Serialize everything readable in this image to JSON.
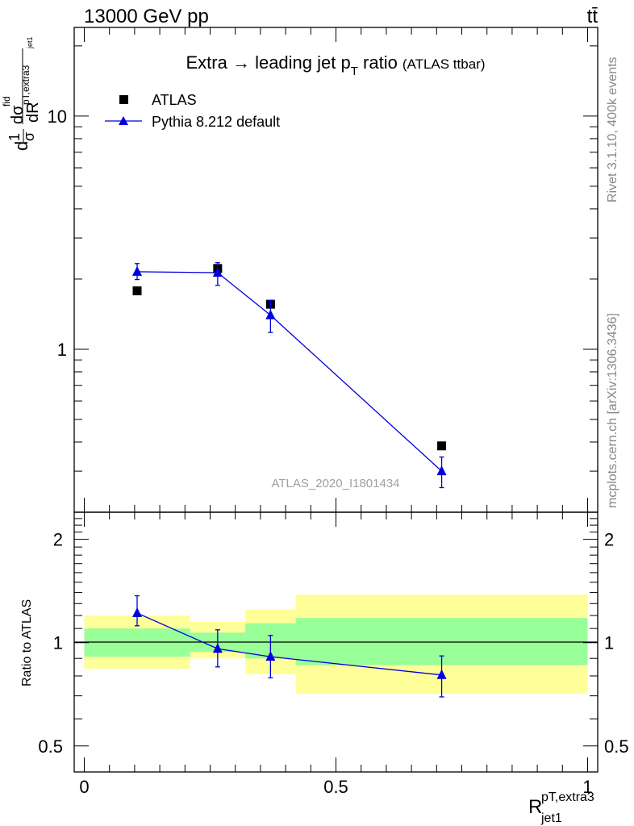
{
  "header": {
    "left": "13000 GeV pp",
    "right": "tt̄"
  },
  "side_notes": {
    "rivet": "Rivet 3.1.10,  400k events",
    "mcplots": "mcplots.cern.ch [arXiv:1306.3436]"
  },
  "colors": {
    "mc": "#0000dd",
    "band_inner": "#99ff99",
    "band_outer": "#ffff99",
    "data": "#000000",
    "watermark": "#a0a0a0"
  },
  "chart_data": [
    {
      "type": "scatter",
      "title": "Extra → leading jet p_T ratio",
      "title_main": "Extra → leading jet p",
      "title_sub": "T",
      "title_after": " ratio",
      "title_note": "(ATLAS ttbar)",
      "ylabel": "dσ/dR (normalized)",
      "ylabel_parts": {
        "frac_num": "1",
        "frac_den": "σ",
        "d": "d",
        "sigma": "dσ",
        "sup": "fid",
        "sub": "pT,extra3",
        "subsub": "jet1",
        "dR": "dR"
      },
      "yscale": "log",
      "xlim": [
        -0.02,
        1.02
      ],
      "ylim": [
        0.2,
        24
      ],
      "y_tick_labels": [
        "1",
        "10"
      ],
      "watermark": "ATLAS_2020_I1801434",
      "legend_position": "top-left",
      "series": [
        {
          "name": "ATLAS",
          "marker": "square",
          "x": [
            0.105,
            0.265,
            0.37,
            0.71
          ],
          "y": [
            1.78,
            2.22,
            1.56,
            0.385
          ],
          "yerr_lo": [
            0.03,
            0.05,
            0.05,
            0.01
          ],
          "yerr_hi": [
            0.03,
            0.05,
            0.05,
            0.01
          ]
        },
        {
          "name": "Pythia 8.212 default",
          "marker": "triangle",
          "x": [
            0.105,
            0.265,
            0.37,
            0.71
          ],
          "y": [
            2.15,
            2.13,
            1.4,
            0.3
          ],
          "yerr_lo": [
            0.16,
            0.25,
            0.22,
            0.045
          ],
          "yerr_hi": [
            0.18,
            0.22,
            0.22,
            0.045
          ]
        }
      ]
    },
    {
      "type": "scatter",
      "ylabel": "Ratio to ATLAS",
      "xlabel": "R",
      "xlabel_sup": "pT,extra3",
      "xlabel_sub": "jet1",
      "yscale": "log",
      "xlim": [
        -0.02,
        1.02
      ],
      "ylim": [
        0.42,
        2.4
      ],
      "x_tick_labels": [
        "0",
        "0.5",
        "1"
      ],
      "y_tick_labels": [
        "0.5",
        "1",
        "2"
      ],
      "bands": [
        {
          "x0": 0.0,
          "x1": 0.21,
          "inner": [
            0.91,
            1.1
          ],
          "outer": [
            0.84,
            1.2
          ]
        },
        {
          "x0": 0.21,
          "x1": 0.32,
          "inner": [
            0.94,
            1.07
          ],
          "outer": [
            0.9,
            1.15
          ]
        },
        {
          "x0": 0.32,
          "x1": 0.42,
          "inner": [
            0.9,
            1.14
          ],
          "outer": [
            0.81,
            1.25
          ]
        },
        {
          "x0": 0.42,
          "x1": 1.0,
          "inner": [
            0.86,
            1.18
          ],
          "outer": [
            0.71,
            1.38
          ]
        }
      ],
      "series": [
        {
          "name": "Pythia 8.212 default",
          "x": [
            0.105,
            0.265,
            0.37,
            0.71
          ],
          "y": [
            1.22,
            0.96,
            0.91,
            0.805
          ],
          "yerr_lo": [
            0.1,
            0.11,
            0.12,
            0.11
          ],
          "yerr_hi": [
            0.15,
            0.13,
            0.14,
            0.11
          ]
        }
      ]
    }
  ]
}
